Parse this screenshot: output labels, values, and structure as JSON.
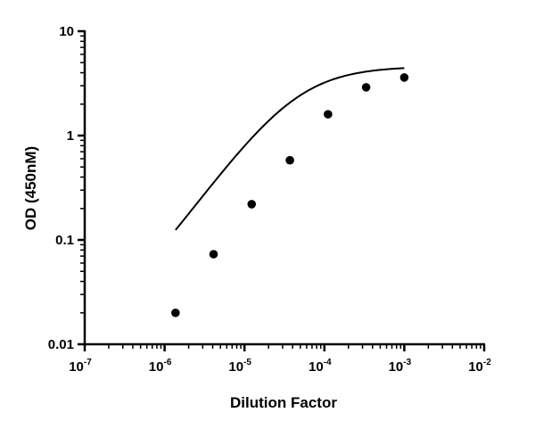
{
  "chart_data": {
    "type": "scatter",
    "title": "",
    "xlabel": "Dilution Factor",
    "ylabel": "OD (450nM)",
    "xscale": "log",
    "yscale": "log",
    "xlim": [
      1e-07,
      0.01
    ],
    "ylim": [
      0.01,
      10
    ],
    "x_ticks": [
      {
        "value": 1e-07,
        "base": "10",
        "exp": "-7"
      },
      {
        "value": 1e-06,
        "base": "10",
        "exp": "-6"
      },
      {
        "value": 1e-05,
        "base": "10",
        "exp": "-5"
      },
      {
        "value": 0.0001,
        "base": "10",
        "exp": "-4"
      },
      {
        "value": 0.001,
        "base": "10",
        "exp": "-3"
      },
      {
        "value": 0.01,
        "base": "10",
        "exp": "-2"
      }
    ],
    "y_ticks": [
      {
        "value": 0.01,
        "label": "0.01"
      },
      {
        "value": 0.1,
        "label": "0.1"
      },
      {
        "value": 1,
        "label": "1"
      },
      {
        "value": 10,
        "label": "10"
      }
    ],
    "minor_ticks": true,
    "grid": false,
    "series": [
      {
        "points": [
          {
            "x": 1.37e-06,
            "y": 0.02
          },
          {
            "x": 4.1e-06,
            "y": 0.073
          },
          {
            "x": 1.23e-05,
            "y": 0.22
          },
          {
            "x": 3.7e-05,
            "y": 0.58
          },
          {
            "x": 0.000111,
            "y": 1.6
          },
          {
            "x": 0.000333,
            "y": 2.9
          },
          {
            "x": 0.001,
            "y": 3.6
          }
        ],
        "fit": {
          "model": "4PL",
          "bottom": 0.01,
          "top": 4.6,
          "ec50": 4.5e-05,
          "hill": 1.05,
          "x_range": [
            1.37e-06,
            0.001
          ]
        },
        "color": "#000000"
      }
    ]
  }
}
